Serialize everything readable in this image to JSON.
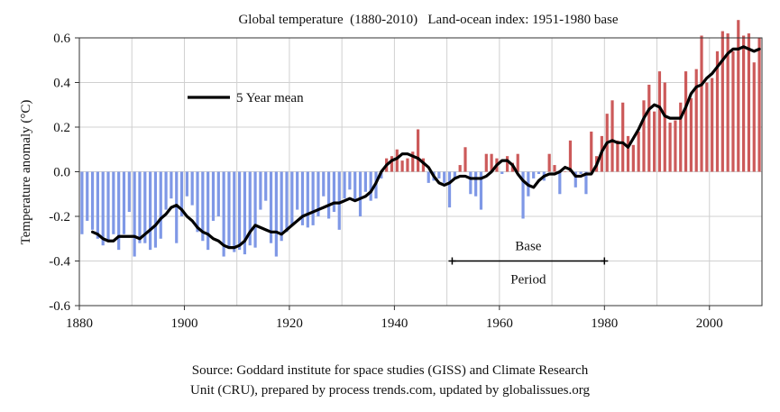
{
  "chart_data": {
    "type": "bar",
    "title": "Global temperature  (1880-2010)   Land-ocean index: 1951-1980 base",
    "ylabel": "Temperature anomaly (°C)",
    "xlabel": "",
    "xlim": [
      1880,
      2010
    ],
    "ylim": [
      -0.6,
      0.6
    ],
    "x_ticks": [
      1880,
      1900,
      1920,
      1940,
      1960,
      1980,
      2000
    ],
    "y_ticks": [
      0.6,
      0.4,
      0.2,
      0.0,
      -0.2,
      -0.4,
      -0.6
    ],
    "y_tick_labels": [
      "0.6",
      "0.4",
      "0.2",
      "0.0",
      "-0.2",
      "-0.4",
      "-0.6"
    ],
    "grid": true,
    "colors": {
      "negative": "#7f98e6",
      "positive": "#cc5a5a",
      "mean_line": "#000000"
    },
    "legend": {
      "position": "top-left",
      "label": "5 Year mean"
    },
    "annotation": {
      "line1": "Base",
      "line2": "Period",
      "start": 1951,
      "end": 1980
    },
    "series": [
      {
        "name": "Annual anomaly",
        "years": [
          1880,
          1881,
          1882,
          1883,
          1884,
          1885,
          1886,
          1887,
          1888,
          1889,
          1890,
          1891,
          1892,
          1893,
          1894,
          1895,
          1896,
          1897,
          1898,
          1899,
          1900,
          1901,
          1902,
          1903,
          1904,
          1905,
          1906,
          1907,
          1908,
          1909,
          1910,
          1911,
          1912,
          1913,
          1914,
          1915,
          1916,
          1917,
          1918,
          1919,
          1920,
          1921,
          1922,
          1923,
          1924,
          1925,
          1926,
          1927,
          1928,
          1929,
          1930,
          1931,
          1932,
          1933,
          1934,
          1935,
          1936,
          1937,
          1938,
          1939,
          1940,
          1941,
          1942,
          1943,
          1944,
          1945,
          1946,
          1947,
          1948,
          1949,
          1950,
          1951,
          1952,
          1953,
          1954,
          1955,
          1956,
          1957,
          1958,
          1959,
          1960,
          1961,
          1962,
          1963,
          1964,
          1965,
          1966,
          1967,
          1968,
          1969,
          1970,
          1971,
          1972,
          1973,
          1974,
          1975,
          1976,
          1977,
          1978,
          1979,
          1980,
          1981,
          1982,
          1983,
          1984,
          1985,
          1986,
          1987,
          1988,
          1989,
          1990,
          1991,
          1992,
          1993,
          1994,
          1995,
          1996,
          1997,
          1998,
          1999,
          2000,
          2001,
          2002,
          2003,
          2004,
          2005,
          2006,
          2007,
          2008,
          2009
        ],
        "values": [
          -0.28,
          -0.22,
          -0.26,
          -0.3,
          -0.33,
          -0.31,
          -0.28,
          -0.35,
          -0.28,
          -0.18,
          -0.38,
          -0.32,
          -0.32,
          -0.35,
          -0.34,
          -0.3,
          -0.17,
          -0.12,
          -0.32,
          -0.2,
          -0.11,
          -0.15,
          -0.27,
          -0.31,
          -0.35,
          -0.22,
          -0.2,
          -0.38,
          -0.34,
          -0.36,
          -0.35,
          -0.37,
          -0.33,
          -0.34,
          -0.17,
          -0.13,
          -0.32,
          -0.38,
          -0.31,
          -0.27,
          -0.24,
          -0.17,
          -0.24,
          -0.25,
          -0.24,
          -0.2,
          -0.11,
          -0.21,
          -0.18,
          -0.26,
          -0.12,
          -0.08,
          -0.13,
          -0.2,
          -0.09,
          -0.13,
          -0.12,
          -0.03,
          0.06,
          0.07,
          0.1,
          0.05,
          0.06,
          0.09,
          0.19,
          0.06,
          -0.05,
          -0.04,
          -0.03,
          -0.05,
          -0.16,
          -0.03,
          0.03,
          0.11,
          -0.1,
          -0.11,
          -0.17,
          0.08,
          0.08,
          0.06,
          -0.01,
          0.07,
          0.04,
          0.08,
          -0.21,
          -0.11,
          -0.03,
          -0.01,
          -0.04,
          0.08,
          0.03,
          -0.1,
          0.0,
          0.14,
          -0.07,
          -0.01,
          -0.1,
          0.18,
          0.07,
          0.16,
          0.26,
          0.32,
          0.14,
          0.31,
          0.16,
          0.12,
          0.18,
          0.32,
          0.39,
          0.27,
          0.45,
          0.4,
          0.22,
          0.23,
          0.31,
          0.45,
          0.33,
          0.46,
          0.61,
          0.4,
          0.42,
          0.54,
          0.63,
          0.62,
          0.54,
          0.68,
          0.61,
          0.62,
          0.49,
          0.6
        ]
      },
      {
        "name": "5 Year mean",
        "years": [
          1882,
          1883,
          1884,
          1885,
          1886,
          1887,
          1888,
          1889,
          1890,
          1891,
          1892,
          1893,
          1894,
          1895,
          1896,
          1897,
          1898,
          1899,
          1900,
          1901,
          1902,
          1903,
          1904,
          1905,
          1906,
          1907,
          1908,
          1909,
          1910,
          1911,
          1912,
          1913,
          1914,
          1915,
          1916,
          1917,
          1918,
          1919,
          1920,
          1921,
          1922,
          1923,
          1924,
          1925,
          1926,
          1927,
          1928,
          1929,
          1930,
          1931,
          1932,
          1933,
          1934,
          1935,
          1936,
          1937,
          1938,
          1939,
          1940,
          1941,
          1942,
          1943,
          1944,
          1945,
          1946,
          1947,
          1948,
          1949,
          1950,
          1951,
          1952,
          1953,
          1954,
          1955,
          1956,
          1957,
          1958,
          1959,
          1960,
          1961,
          1962,
          1963,
          1964,
          1965,
          1966,
          1967,
          1968,
          1969,
          1970,
          1971,
          1972,
          1973,
          1974,
          1975,
          1976,
          1977,
          1978,
          1979,
          1980,
          1981,
          1982,
          1983,
          1984,
          1985,
          1986,
          1987,
          1988,
          1989,
          1990,
          1991,
          1992,
          1993,
          1994,
          1995,
          1996,
          1997,
          1998,
          1999,
          2000,
          2001,
          2002,
          2003,
          2004,
          2005,
          2006,
          2007,
          2008,
          2009
        ],
        "values": [
          -0.27,
          -0.28,
          -0.3,
          -0.31,
          -0.31,
          -0.29,
          -0.29,
          -0.29,
          -0.29,
          -0.3,
          -0.28,
          -0.26,
          -0.24,
          -0.21,
          -0.19,
          -0.16,
          -0.15,
          -0.17,
          -0.2,
          -0.22,
          -0.25,
          -0.27,
          -0.28,
          -0.3,
          -0.31,
          -0.33,
          -0.34,
          -0.34,
          -0.33,
          -0.31,
          -0.27,
          -0.24,
          -0.25,
          -0.26,
          -0.27,
          -0.27,
          -0.28,
          -0.26,
          -0.24,
          -0.22,
          -0.2,
          -0.19,
          -0.18,
          -0.17,
          -0.16,
          -0.15,
          -0.14,
          -0.14,
          -0.13,
          -0.12,
          -0.13,
          -0.12,
          -0.11,
          -0.09,
          -0.05,
          0.0,
          0.03,
          0.05,
          0.06,
          0.08,
          0.08,
          0.07,
          0.06,
          0.04,
          0.02,
          -0.02,
          -0.05,
          -0.06,
          -0.05,
          -0.03,
          -0.02,
          -0.02,
          -0.03,
          -0.03,
          -0.03,
          -0.02,
          0.0,
          0.03,
          0.05,
          0.05,
          0.03,
          -0.01,
          -0.04,
          -0.06,
          -0.07,
          -0.04,
          -0.02,
          -0.01,
          -0.01,
          0.0,
          0.02,
          0.01,
          -0.02,
          -0.02,
          -0.01,
          -0.01,
          0.03,
          0.09,
          0.13,
          0.14,
          0.13,
          0.13,
          0.11,
          0.15,
          0.19,
          0.24,
          0.28,
          0.3,
          0.29,
          0.25,
          0.24,
          0.24,
          0.24,
          0.29,
          0.35,
          0.38,
          0.39,
          0.42,
          0.44,
          0.47,
          0.5,
          0.53,
          0.55,
          0.55,
          0.56,
          0.55,
          0.54,
          0.55
        ]
      }
    ]
  },
  "source": {
    "line1": "Source: Goddard institute for space studies (GISS) and Climate Research",
    "line2": "Unit (CRU), prepared by process trends.com, updated by globalissues.org"
  }
}
